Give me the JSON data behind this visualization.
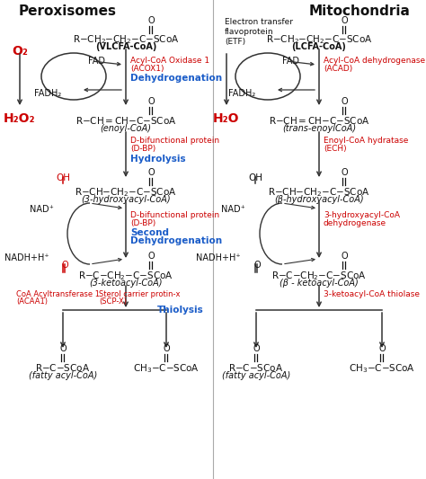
{
  "title_left": "Peroxisomes",
  "title_right": "Mitochondria",
  "bg_color": "#ffffff",
  "red": "#cc0000",
  "blue": "#1a5cc8",
  "black": "#111111",
  "darkgray": "#333333",
  "perox_substrate": "R–CH₂–CH₂–C–SCoA",
  "perox_substrate_name": "(VLCFA-CoA)",
  "perox_o2": "O₂",
  "perox_fad": "FAD",
  "perox_fadh2": "FADH₂",
  "perox_h2o2": "H₂O₂",
  "perox_enz1a": "Acyl-CoA Oxidase 1",
  "perox_enz1b": "(ACOX1)",
  "perox_step1": "Dehydrogenation",
  "perox_prod1": "R–CH=CH–C–SCoA",
  "perox_prod1_name": "(enoyl-CoA)",
  "perox_enz2a": "D-bifunctional protein",
  "perox_enz2b": "(D-BP)",
  "perox_step2": "Hydrolysis",
  "perox_oh": "OH",
  "perox_prod2": "R–CH–CH₂–C–SCoA",
  "perox_prod2_name": "(3-hydroxyacyl-CoA)",
  "perox_nad": "NAD⁺",
  "perox_nadh": "NADH+H⁺",
  "perox_enz3a": "D-bifunctional protein",
  "perox_enz3b": "(D-BP)",
  "perox_step3a": "Second",
  "perox_step3b": "Dehydrogenation",
  "perox_prod3": "R–C–CH₂–C–SCoA",
  "perox_prod3_name": "(3-ketoacyl-CoA)",
  "perox_enz4a": "CoA Acyltransferase 1",
  "perox_enz4b": "(ACAA1)",
  "perox_enz4c": "Sterol carrier protin-x",
  "perox_enz4d": "(SCP-X)",
  "perox_step4": "Thiolysis",
  "perox_final1": "R–C–SCoA",
  "perox_final1_name": "(fatty acyl-CoA)",
  "perox_final2": "CH₃–C–SCoA",
  "mito_etf": "Electron transfer\nflavoprotein\n(ETF)",
  "mito_substrate": "R–CH₂–CH₂–C–SCoA",
  "mito_substrate_name": "(LCFA-CoA)",
  "mito_fad": "FAD",
  "mito_fadh2": "FADH₂",
  "mito_h2o": "H₂O",
  "mito_enz1a": "Acyl-CoA dehydrogenase",
  "mito_enz1b": "(ACAD)",
  "mito_prod1": "R–CH=CH–C–SCoA",
  "mito_prod1_name": "(trans-enoylCoA)",
  "mito_enz2a": "Enoyl-CoA hydratase",
  "mito_enz2b": "(ECH)",
  "mito_oh": "OH",
  "mito_prod2": "R–CH–CH₂–C–SCoA",
  "mito_prod2_name": "(β-hydroxyacyl-CoA)",
  "mito_nad": "NAD⁺",
  "mito_nadh": "NADH+H⁺",
  "mito_enz3a": "3-hydroxyacyl-CoA",
  "mito_enz3b": "dehydrogenase",
  "mito_prod3": "R–C–CH₂–C–SCoA",
  "mito_prod3_name": "(β - ketoacyl-CoA)",
  "mito_enz4": "3-ketoacyl-CoA thiolase",
  "mito_final1": "R–C–SCoA",
  "mito_final1_name": "(fatty acyl-CoA)",
  "mito_final2": "CH₃–C–SCoA"
}
